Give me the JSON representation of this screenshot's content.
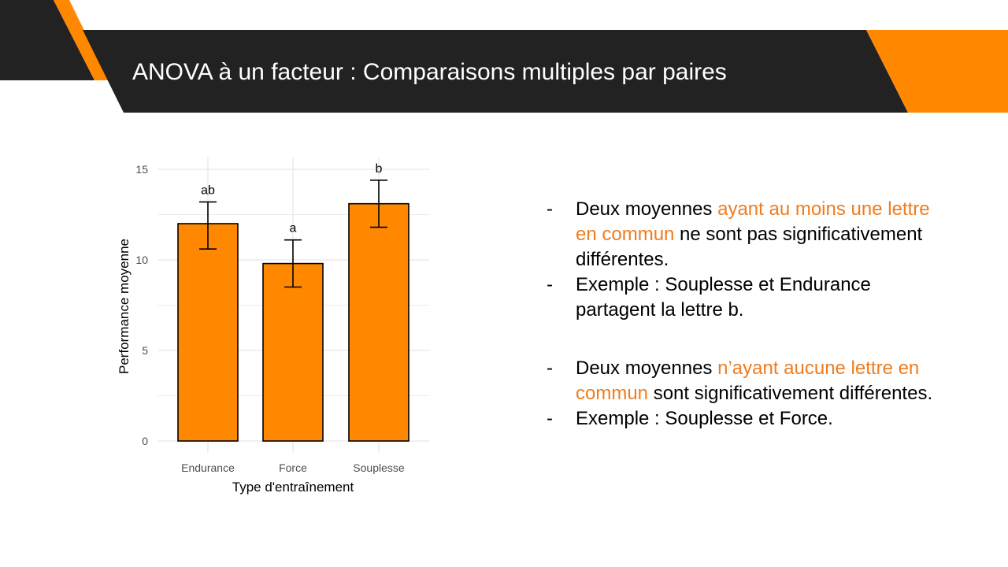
{
  "slide": {
    "title": "ANOVA à un facteur : Comparaisons multiples par paires",
    "colors": {
      "dark": "#222222",
      "accent": "#ff8800",
      "highlight_text": "#f07c1e"
    }
  },
  "bullets": {
    "groups": [
      {
        "items": [
          {
            "dash": "-",
            "before": "Deux moyennes ",
            "highlight": "ayant au moins une lettre en commun",
            "after": " ne sont pas significativement différentes."
          },
          {
            "dash": "-",
            "before": "Exemple : Souplesse et Endurance partagent la lettre b.",
            "highlight": "",
            "after": ""
          }
        ]
      },
      {
        "items": [
          {
            "dash": "-",
            "before": "Deux moyennes ",
            "highlight": "n’ayant aucune lettre en commun",
            "after": " sont significativement différentes."
          },
          {
            "dash": "-",
            "before": "Exemple : Souplesse et Force.",
            "highlight": "",
            "after": ""
          }
        ]
      }
    ]
  },
  "chart_data": {
    "type": "bar",
    "title": "",
    "xlabel": "Type d'entraînement",
    "ylabel": "Performance moyenne",
    "categories": [
      "Endurance",
      "Force",
      "Souplesse"
    ],
    "values": [
      12.0,
      9.8,
      13.1
    ],
    "error_bars": {
      "lower": [
        10.6,
        8.5,
        11.8
      ],
      "upper": [
        13.2,
        11.1,
        14.4
      ]
    },
    "group_letters": [
      "ab",
      "a",
      "b"
    ],
    "yticks": [
      0,
      5,
      10,
      15
    ],
    "ylim": [
      0,
      15.6
    ],
    "grid": true,
    "legend": null,
    "bar_color": "#ff8800",
    "bar_edge_color": "#000000"
  }
}
